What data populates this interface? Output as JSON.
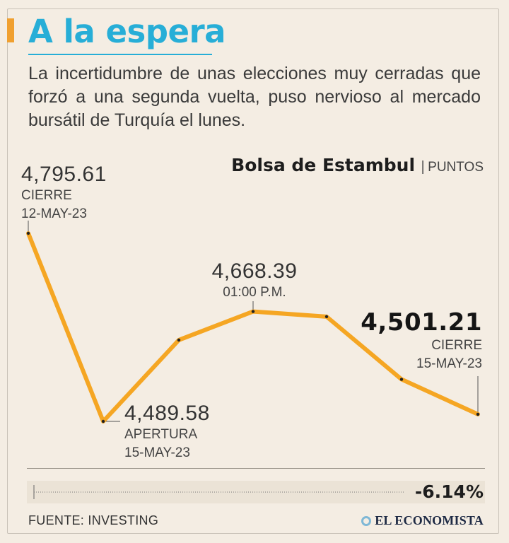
{
  "header": {
    "title": "A la espera",
    "subtitle": "La incertidumbre de unas elecciones muy cerradas que forzó a una segunda vuelta, puso nervioso al mercado bursátil de Turquía el lunes."
  },
  "chart_data": {
    "type": "line",
    "title": "Bolsa de Estambul",
    "separator": "|",
    "unit": "PUNTOS",
    "ylim": [
      4450,
      4830
    ],
    "series": [
      {
        "name": "Bolsa de Estambul",
        "values": [
          4795.61,
          4489.58,
          4622,
          4668.39,
          4660,
          4558,
          4501.21
        ]
      }
    ],
    "annotations": [
      {
        "point": 0,
        "value": "4,795.61",
        "label": "CIERRE",
        "date": "12-MAY-23"
      },
      {
        "point": 1,
        "value": "4,489.58",
        "label": "APERTURA",
        "date": "15-MAY-23"
      },
      {
        "point": 3,
        "value": "4,668.39",
        "label": "01:00 P.M.",
        "date": ""
      },
      {
        "point": 6,
        "value": "4,501.21",
        "label": "CIERRE",
        "date": "15-MAY-23"
      }
    ],
    "change": "-6.14%",
    "line_color": "#f5a623"
  },
  "footer": {
    "source": "FUENTE: INVESTING",
    "brand": "EL ECONOMISTA"
  }
}
